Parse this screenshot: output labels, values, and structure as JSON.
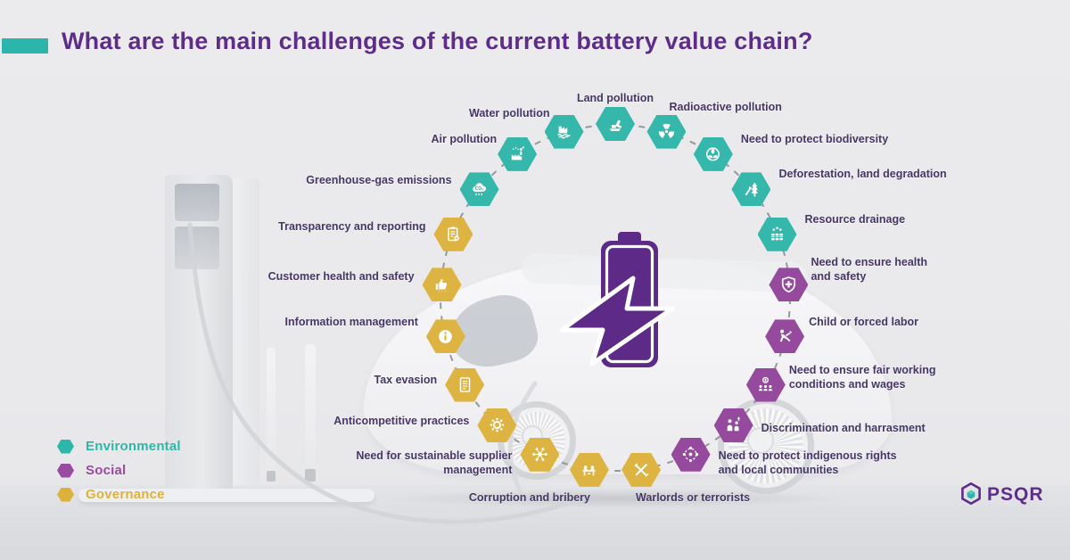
{
  "header": {
    "title": "What are the main challenges of the current battery value chain?"
  },
  "colors": {
    "environmental": "#35b7ab",
    "social": "#964a9e",
    "governance": "#ddb341",
    "title": "#5e2c8a",
    "label_text": "#463767",
    "battery": "#5d2b87",
    "dash": "#97979c"
  },
  "center": {
    "icon": "battery-bolt-icon"
  },
  "items": [
    {
      "label": "Land pollution",
      "category": "environmental",
      "icon": "excavator-icon"
    },
    {
      "label": "Radioactive pollution",
      "category": "environmental",
      "icon": "radiation-icon"
    },
    {
      "label": "Need to protect biodiversity",
      "category": "environmental",
      "icon": "biodiversity-icon"
    },
    {
      "label": "Deforestation, land degradation",
      "category": "environmental",
      "icon": "deforestation-icon"
    },
    {
      "label": "Resource drainage",
      "category": "environmental",
      "icon": "barrels-icon"
    },
    {
      "label": "Need to ensure health\nand safety",
      "category": "social",
      "icon": "shield-cross-icon"
    },
    {
      "label": "Child or forced labor",
      "category": "social",
      "icon": "child-labor-icon"
    },
    {
      "label": "Need to ensure fair working\nconditions and wages",
      "category": "social",
      "icon": "people-coin-icon"
    },
    {
      "label": "Discrimination and harrasment",
      "category": "social",
      "icon": "discrimination-icon"
    },
    {
      "label": "Need to protect indigenous rights\nand local communities",
      "category": "social",
      "icon": "indigenous-icon"
    },
    {
      "label": "Warlords or terrorists",
      "category": "governance",
      "icon": "warlords-icon"
    },
    {
      "label": "Corruption and bribery",
      "category": "governance",
      "icon": "corruption-icon"
    },
    {
      "label": "Need for sustainable supplier\nmanagement",
      "category": "governance",
      "icon": "network-icon"
    },
    {
      "label": "Anticompetitive practices",
      "category": "governance",
      "icon": "gear-icon"
    },
    {
      "label": "Tax evasion",
      "category": "governance",
      "icon": "document-icon"
    },
    {
      "label": "Information management",
      "category": "governance",
      "icon": "info-icon"
    },
    {
      "label": "Customer health and safety",
      "category": "governance",
      "icon": "thumbs-up-icon"
    },
    {
      "label": "Transparency and reporting",
      "category": "governance",
      "icon": "clipboard-icon"
    },
    {
      "label": "Greenhouse-gas emissions",
      "category": "environmental",
      "icon": "co2-cloud-icon"
    },
    {
      "label": "Air pollution",
      "category": "environmental",
      "icon": "air-pollution-icon"
    },
    {
      "label": "Water pollution",
      "category": "environmental",
      "icon": "water-pollution-icon"
    }
  ],
  "legend": {
    "items": [
      {
        "label": "Environmental",
        "color": "#2fb6aa"
      },
      {
        "label": "Social",
        "color": "#9a4ba1"
      },
      {
        "label": "Governance",
        "color": "#dcb23c"
      }
    ]
  },
  "logo": {
    "text": "PSQR"
  }
}
